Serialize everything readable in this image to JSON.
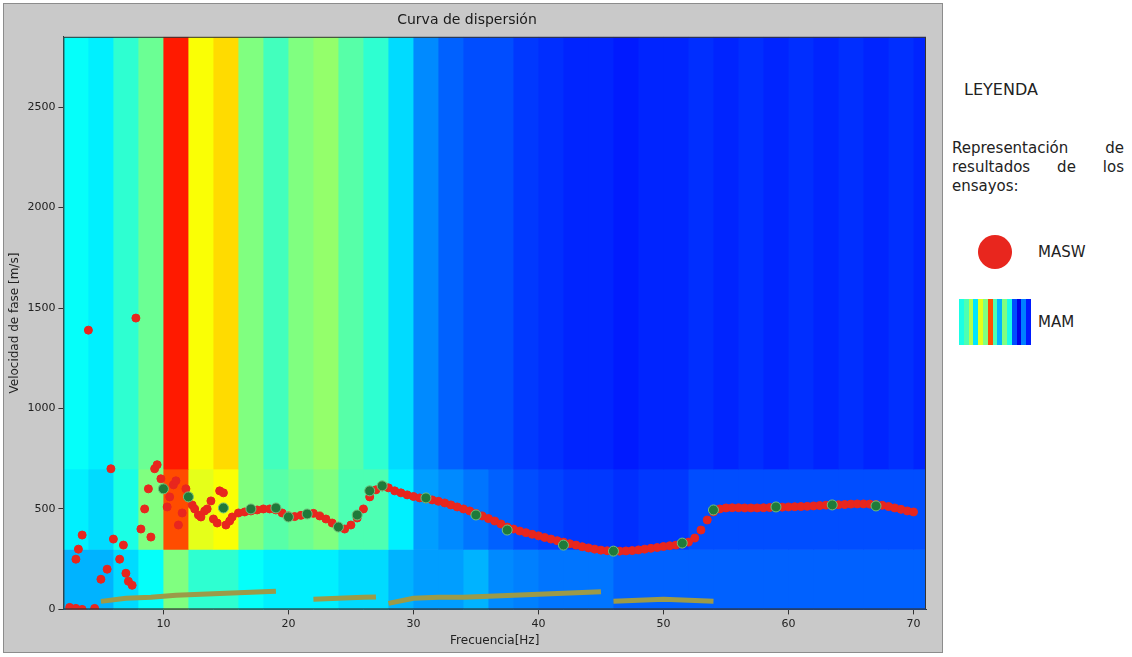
{
  "chart_data": {
    "type": "scatter",
    "title": "Curva de dispersión",
    "x_label": "Frecuencia[Hz]",
    "y_label": "Velocidad de fase [m/s]",
    "xlim": [
      2,
      71
    ],
    "ylim": [
      0,
      2850
    ],
    "xticks": [
      10,
      20,
      30,
      40,
      50,
      60,
      70
    ],
    "yticks": [
      0,
      500,
      1000,
      1500,
      2000,
      2500
    ],
    "grid": false,
    "legend": "right",
    "legend_title": "LEYENDA",
    "legend_subtitle": "Representación de resultados de los ensayos:",
    "heatmap": {
      "name": "MAM",
      "x_edges": [
        2,
        4,
        6,
        8,
        10,
        12,
        14,
        16,
        18,
        20,
        22,
        24,
        26,
        28,
        30,
        32,
        34,
        36,
        38,
        40,
        42,
        44,
        46,
        48,
        50,
        52,
        54,
        56,
        58,
        60,
        62,
        64,
        66,
        68,
        70,
        71
      ],
      "y_edges": [
        0,
        300,
        700,
        2850
      ],
      "zlim": [
        0,
        1
      ],
      "cells": [
        [
          0.3,
          0.3,
          0.34,
          0.38,
          0.5,
          0.42,
          0.42,
          0.38,
          0.36,
          0.36,
          0.36,
          0.34,
          0.34,
          0.3,
          0.28,
          0.28,
          0.3,
          0.26,
          0.25,
          0.24,
          0.24,
          0.24,
          0.22,
          0.22,
          0.22,
          0.22,
          0.22,
          0.22,
          0.22,
          0.22,
          0.22,
          0.22,
          0.22,
          0.22,
          0.22
        ],
        [
          0.36,
          0.34,
          0.4,
          0.5,
          0.8,
          0.6,
          0.62,
          0.5,
          0.46,
          0.48,
          0.5,
          0.45,
          0.45,
          0.36,
          0.28,
          0.26,
          0.24,
          0.22,
          0.2,
          0.19,
          0.18,
          0.18,
          0.17,
          0.18,
          0.18,
          0.2,
          0.2,
          0.2,
          0.2,
          0.2,
          0.2,
          0.2,
          0.2,
          0.2,
          0.2
        ],
        [
          0.38,
          0.36,
          0.42,
          0.48,
          0.85,
          0.62,
          0.66,
          0.5,
          0.44,
          0.5,
          0.52,
          0.46,
          0.42,
          0.34,
          0.26,
          0.22,
          0.2,
          0.2,
          0.18,
          0.17,
          0.16,
          0.16,
          0.15,
          0.16,
          0.16,
          0.17,
          0.16,
          0.17,
          0.16,
          0.17,
          0.16,
          0.17,
          0.16,
          0.17,
          0.16
        ]
      ]
    },
    "series": [
      {
        "color": "#9c9a48",
        "marker": "none",
        "line_style": "solid",
        "x": [
          5,
          7,
          9,
          11,
          13,
          15,
          17,
          19,
          20.5,
          22,
          24,
          26,
          27,
          27.5,
          28,
          30,
          32,
          34,
          36,
          38,
          40,
          42,
          44,
          45,
          45.5,
          46,
          48,
          50,
          52,
          54
        ],
        "values": [
          40,
          55,
          60,
          70,
          75,
          80,
          85,
          90,
          null,
          50,
          55,
          60,
          62,
          null,
          30,
          55,
          60,
          60,
          65,
          70,
          75,
          80,
          85,
          88,
          null,
          40,
          45,
          50,
          45,
          40
        ]
      },
      {
        "name": "MASW",
        "color": "#e8261e",
        "marker": "circle",
        "x": [
          2.5,
          3,
          3,
          3.2,
          3.5,
          3.5,
          4,
          4.5,
          5,
          5.5,
          5.8,
          6,
          6.5,
          6.8,
          7,
          7.2,
          7.5,
          7.8,
          8.2,
          8.5,
          8.8,
          9,
          9.3,
          9.5,
          9.8,
          10.3,
          10.5,
          10.8,
          11,
          11.2,
          11.5,
          11.8,
          12.3,
          12.5,
          12.8,
          13,
          13.3,
          13.5,
          13.8,
          14,
          14.3,
          14.5,
          14.8,
          15,
          15.3,
          15.5,
          16,
          16.5,
          17,
          17.5,
          18,
          18.5,
          19,
          19.5,
          20,
          20.5,
          21,
          21.5,
          22,
          22.5,
          23,
          23.5,
          24,
          24.5,
          25,
          25.5,
          26,
          26.5,
          27,
          27.5,
          28,
          28.5,
          29,
          29.5,
          30,
          30.5,
          31,
          31.5,
          32,
          32.5,
          33,
          33.5,
          34,
          34.5,
          35,
          35.5,
          36,
          36.5,
          37,
          37.5,
          38,
          38.5,
          39,
          39.5,
          40,
          40.5,
          41,
          41.5,
          42,
          42.5,
          43,
          43.5,
          44,
          44.5,
          45,
          45.5,
          46,
          46.5,
          47,
          47.5,
          48,
          48.5,
          49,
          49.5,
          50,
          50.5,
          51,
          51.5,
          52,
          52.5,
          53,
          53.5,
          54,
          54.5,
          55,
          55.5,
          56,
          56.5,
          57,
          57.5,
          58,
          58.5,
          59,
          59.5,
          60,
          60.5,
          61,
          61.5,
          62,
          62.5,
          63,
          63.5,
          64,
          64.5,
          65,
          65.5,
          66,
          66.5,
          67,
          67.5,
          68,
          68.5,
          69,
          69.5,
          70
        ],
        "values": [
          10,
          250,
          5,
          300,
          370,
          0,
          1390,
          5,
          150,
          200,
          700,
          350,
          250,
          320,
          180,
          140,
          120,
          1450,
          400,
          500,
          600,
          360,
          700,
          720,
          650,
          510,
          560,
          620,
          640,
          420,
          480,
          600,
          520,
          500,
          470,
          460,
          490,
          500,
          540,
          450,
          430,
          590,
          580,
          420,
          440,
          460,
          480,
          485,
          490,
          495,
          500,
          500,
          495,
          480,
          465,
          462,
          468,
          475,
          478,
          465,
          450,
          430,
          410,
          400,
          420,
          455,
          500,
          560,
          595,
          610,
          605,
          590,
          580,
          570,
          562,
          555,
          550,
          545,
          538,
          530,
          520,
          510,
          500,
          490,
          478,
          465,
          452,
          440,
          425,
          410,
          400,
          390,
          382,
          374,
          366,
          358,
          350,
          342,
          335,
          327,
          320,
          312,
          306,
          300,
          295,
          292,
          290,
          290,
          291,
          293,
          296,
          300,
          304,
          308,
          313,
          317,
          320,
          326,
          335,
          355,
          395,
          445,
          485,
          500,
          505,
          506,
          506,
          505,
          505,
          505,
          506,
          507,
          508,
          509,
          510,
          511,
          512,
          513,
          515,
          517,
          519,
          520,
          521,
          522,
          524,
          525,
          525,
          524,
          522,
          518,
          512,
          505,
          498,
          490,
          485
        ]
      },
      {
        "color": "#1f7a3a",
        "marker": "circle",
        "x": [
          10,
          12,
          14.8,
          17,
          19,
          20,
          21.5,
          24,
          25.5,
          26.5,
          27.5,
          31,
          35,
          37.5,
          42,
          46,
          51.5,
          54,
          59,
          63.5,
          67
        ],
        "values": [
          600,
          560,
          505,
          500,
          505,
          460,
          475,
          410,
          470,
          590,
          615,
          555,
          470,
          395,
          320,
          290,
          330,
          495,
          510,
          520,
          515
        ]
      }
    ]
  }
}
